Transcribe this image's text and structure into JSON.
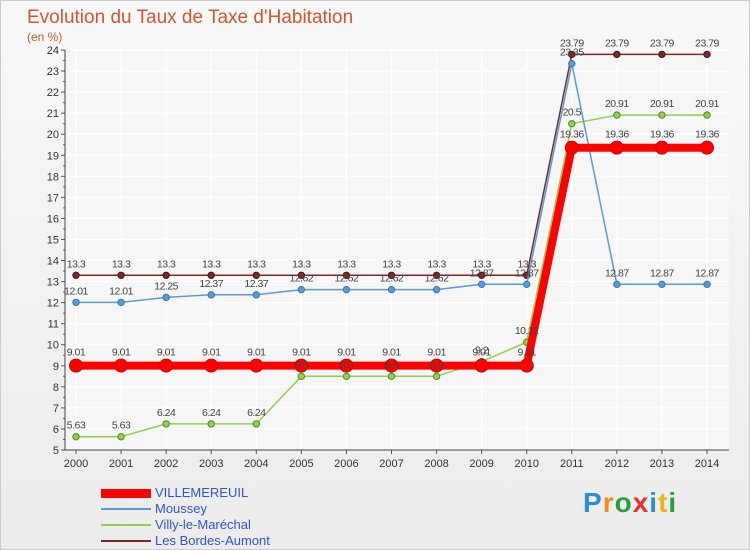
{
  "title": "Evolution du Taux de Taxe d'Habitation",
  "subtitle": "(en %)",
  "logo_text": "Proxiti",
  "logo_colors": [
    "#2a8fd4",
    "#f28c1c",
    "#2aa03c",
    "#e8332a",
    "#2a8fd4",
    "#f2b21c",
    "#2aa03c"
  ],
  "chart_data": {
    "type": "line",
    "title": "Evolution du Taux de Taxe d'Habitation",
    "ylabel": "(en %)",
    "xlabel": "",
    "x": [
      2000,
      2001,
      2002,
      2003,
      2004,
      2005,
      2006,
      2007,
      2008,
      2009,
      2010,
      2011,
      2012,
      2013,
      2014
    ],
    "ylim": [
      5,
      24
    ],
    "yticks": [
      5,
      6,
      7,
      8,
      9,
      10,
      11,
      12,
      13,
      14,
      15,
      16,
      17,
      18,
      19,
      20,
      21,
      22,
      23,
      24
    ],
    "grid": true,
    "legend_position": "bottom-left",
    "series": [
      {
        "name": "VILLEMEREUIL",
        "color": "#ff0000",
        "values": [
          9.01,
          9.01,
          9.01,
          9.01,
          9.01,
          9.01,
          9.01,
          9.01,
          9.01,
          9.01,
          9.01,
          19.36,
          19.36,
          19.36,
          19.36
        ],
        "labels": [
          "9.01",
          "9.01",
          "9.01",
          "9.01",
          "9.01",
          "9.01",
          "9.01",
          "9.01",
          "9.01",
          "9.01",
          "9.01",
          "19.36",
          "19.36",
          "19.36",
          "19.36"
        ]
      },
      {
        "name": "Moussey",
        "color": "#5b9bd5",
        "values": [
          12.01,
          12.01,
          12.25,
          12.37,
          12.37,
          12.62,
          12.62,
          12.62,
          12.62,
          12.87,
          12.87,
          23.35,
          12.87,
          12.87,
          12.87
        ],
        "labels": [
          "12.01",
          "12.01",
          "12.25",
          "12.37",
          "12.37",
          "12.62",
          "12.62",
          "12.62",
          "12.62",
          "12.87",
          "12.87",
          "23.35",
          "12.87",
          "12.87",
          "12.87"
        ]
      },
      {
        "name": "Villy-le-Maréchal",
        "color": "#92d050",
        "values": [
          5.63,
          5.63,
          6.24,
          6.24,
          6.24,
          8.5,
          8.5,
          8.5,
          8.5,
          9.2,
          10.12,
          20.5,
          20.91,
          20.91,
          20.91
        ],
        "labels": [
          "5.63",
          "5.63",
          "6.24",
          "6.24",
          "6.24",
          "8.5",
          "8.5",
          "8.5",
          "8.5",
          "9.2",
          "10.12",
          "20.5",
          "20.91",
          "20.91",
          "20.91"
        ]
      },
      {
        "name": "Les Bordes-Aumont",
        "color": "#7b2a2a",
        "values": [
          13.3,
          13.3,
          13.3,
          13.3,
          13.3,
          13.3,
          13.3,
          13.3,
          13.3,
          13.3,
          13.3,
          23.79,
          23.79,
          23.79,
          23.79
        ],
        "labels": [
          "13.3",
          "13.3",
          "13.3",
          "13.3",
          "13.3",
          "13.3",
          "13.3",
          "13.3",
          "13.3",
          "13.3",
          "13.3",
          "23.79",
          "23.79",
          "23.79",
          "23.79"
        ]
      }
    ]
  }
}
